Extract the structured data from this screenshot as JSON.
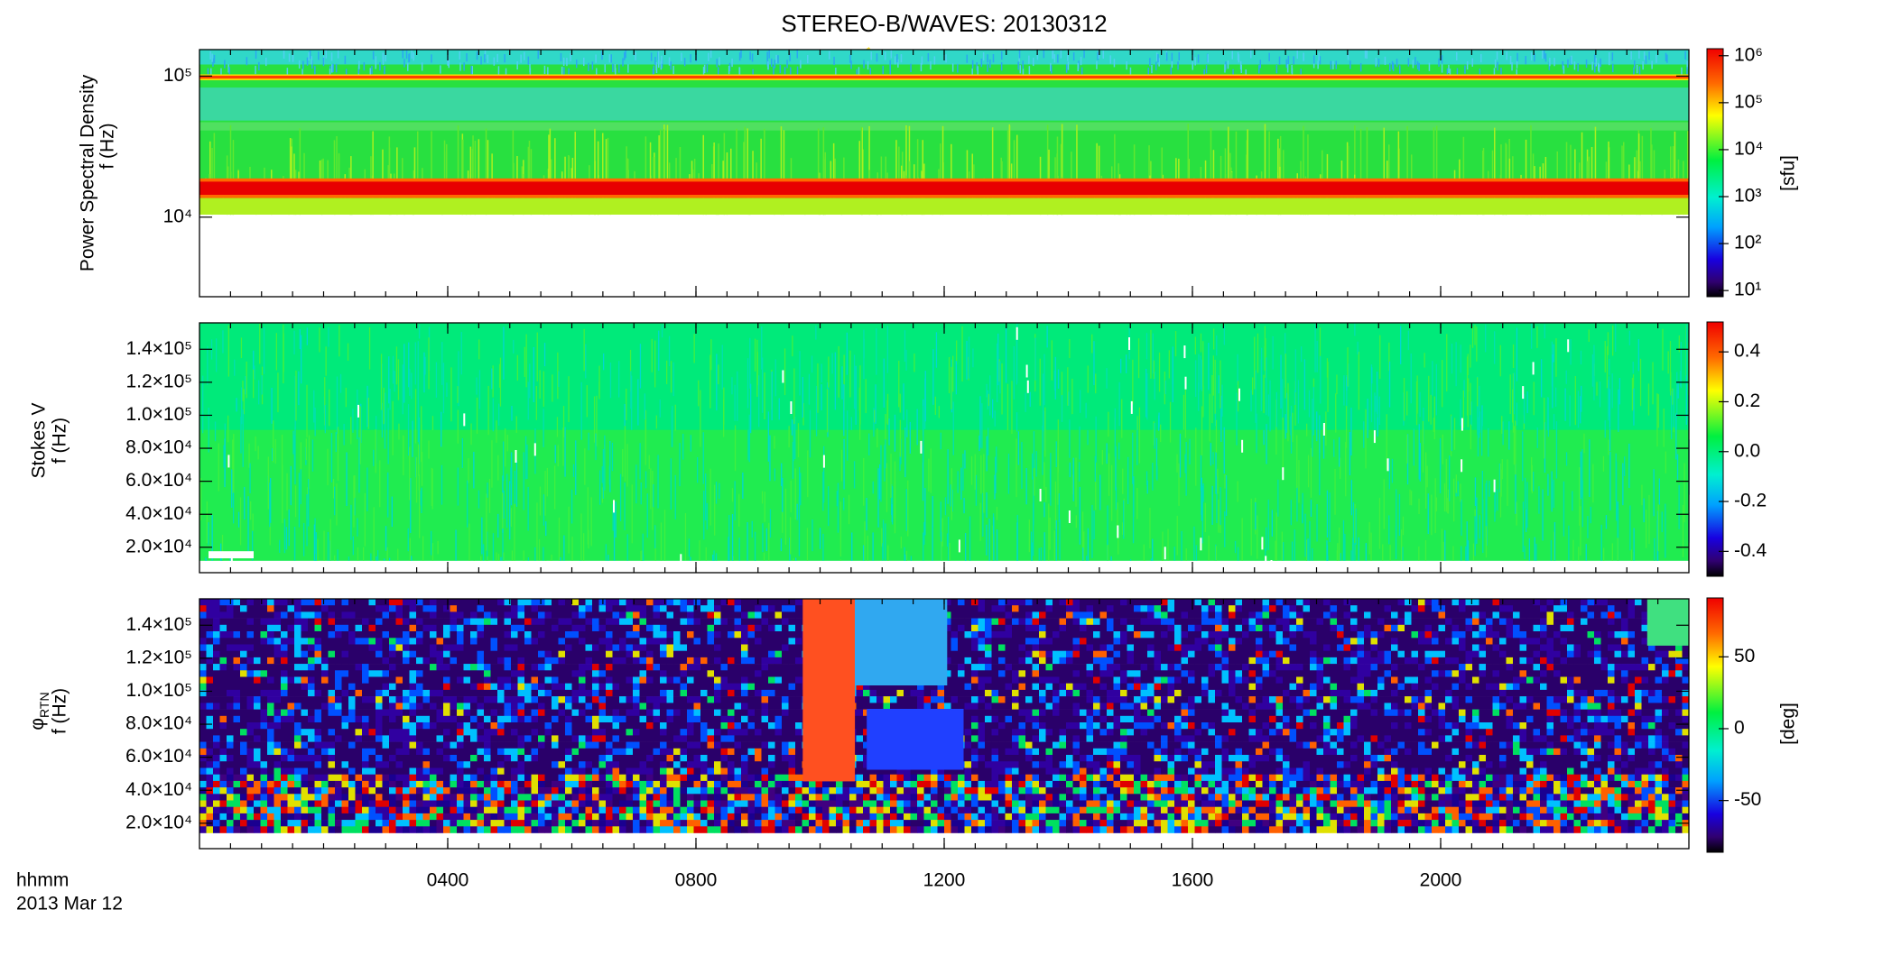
{
  "title": "STEREO-B/WAVES: 20130312",
  "x_axis": {
    "label": "hhmm",
    "date": "2013 Mar 12",
    "xlim": [
      0,
      24
    ],
    "xticks": [
      {
        "value": 4,
        "label": "0400"
      },
      {
        "value": 8,
        "label": "0800"
      },
      {
        "value": 12,
        "label": "1200"
      },
      {
        "value": 16,
        "label": "1600"
      },
      {
        "value": 20,
        "label": "2000"
      }
    ]
  },
  "chart_data": [
    {
      "type": "spectrogram",
      "ylabel": "Power Spectral Density",
      "ylabel2": "f (Hz)",
      "log_y": true,
      "ylim": [
        2730,
        154000
      ],
      "yticks": [
        {
          "value": 10000,
          "label": "10⁴"
        },
        {
          "value": 100000,
          "label": "10⁵"
        }
      ],
      "colorbar_label": "[sfu]",
      "log_c": true,
      "clim": [
        7.4,
        1410000
      ],
      "cticks": [
        {
          "value": 10,
          "label": "10¹"
        },
        {
          "value": 100,
          "label": "10²"
        },
        {
          "value": 1000,
          "label": "10³"
        },
        {
          "value": 10000,
          "label": "10⁴"
        },
        {
          "value": 100000,
          "label": "10⁵"
        },
        {
          "value": 1000000,
          "label": "10⁶"
        }
      ]
    },
    {
      "type": "spectrogram",
      "ylabel": "Stokes V",
      "ylabel2": "f (Hz)",
      "log_y": false,
      "ylim": [
        4600,
        156000
      ],
      "yticks": [
        {
          "value": 20000,
          "label": "2.0×10⁴"
        },
        {
          "value": 40000,
          "label": "4.0×10⁴"
        },
        {
          "value": 60000,
          "label": "6.0×10⁴"
        },
        {
          "value": 80000,
          "label": "8.0×10⁴"
        },
        {
          "value": 100000,
          "label": "1.0×10⁵"
        },
        {
          "value": 120000,
          "label": "1.2×10⁵"
        },
        {
          "value": 140000,
          "label": "1.4×10⁵"
        }
      ],
      "log_c": false,
      "clim": [
        -0.5,
        0.52
      ],
      "cticks": [
        {
          "value": -0.4,
          "label": "-0.4"
        },
        {
          "value": -0.2,
          "label": "-0.2"
        },
        {
          "value": 0,
          "label": "0.0"
        },
        {
          "value": 0.2,
          "label": "0.2"
        },
        {
          "value": 0.4,
          "label": "0.4"
        }
      ]
    },
    {
      "type": "spectrogram",
      "ylabel": "φ",
      "ylabel_subscript": "RTN",
      "ylabel2": "f (Hz)",
      "log_y": false,
      "ylim": [
        4600,
        156000
      ],
      "yticks": [
        {
          "value": 20000,
          "label": "2.0×10⁴"
        },
        {
          "value": 40000,
          "label": "4.0×10⁴"
        },
        {
          "value": 60000,
          "label": "6.0×10⁴"
        },
        {
          "value": 80000,
          "label": "8.0×10⁴"
        },
        {
          "value": 100000,
          "label": "1.0×10⁵"
        },
        {
          "value": 120000,
          "label": "1.2×10⁵"
        },
        {
          "value": 140000,
          "label": "1.4×10⁵"
        }
      ],
      "colorbar_label": "[deg]",
      "log_c": false,
      "clim": [
        -86,
        91
      ],
      "cticks": [
        -50,
        0,
        50
      ]
    }
  ]
}
